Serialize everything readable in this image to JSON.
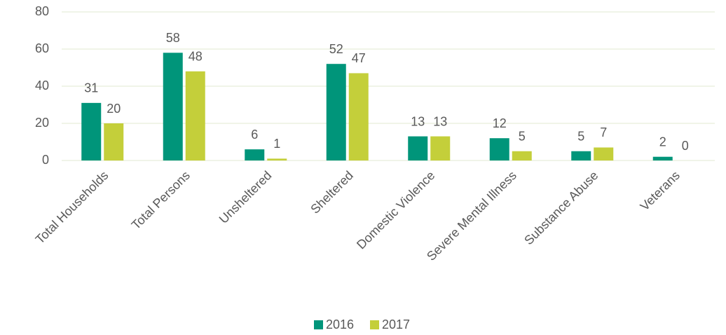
{
  "chart_data": {
    "type": "bar",
    "categories": [
      "Total Households",
      "Total Persons",
      "Unsheltered",
      "Sheltered",
      "Domestic Violence",
      "Severe Mental Illness",
      "Substance Abuse",
      "Veterans"
    ],
    "series": [
      {
        "name": "2016",
        "color": "#00957a",
        "values": [
          31,
          58,
          6,
          52,
          13,
          12,
          5,
          2
        ]
      },
      {
        "name": "2017",
        "color": "#c4cf3a",
        "values": [
          20,
          48,
          1,
          47,
          13,
          5,
          7,
          0
        ]
      }
    ],
    "ylim": [
      0,
      80
    ],
    "yticks": [
      0,
      20,
      40,
      60,
      80
    ],
    "grid": true,
    "legend": "bottom"
  }
}
